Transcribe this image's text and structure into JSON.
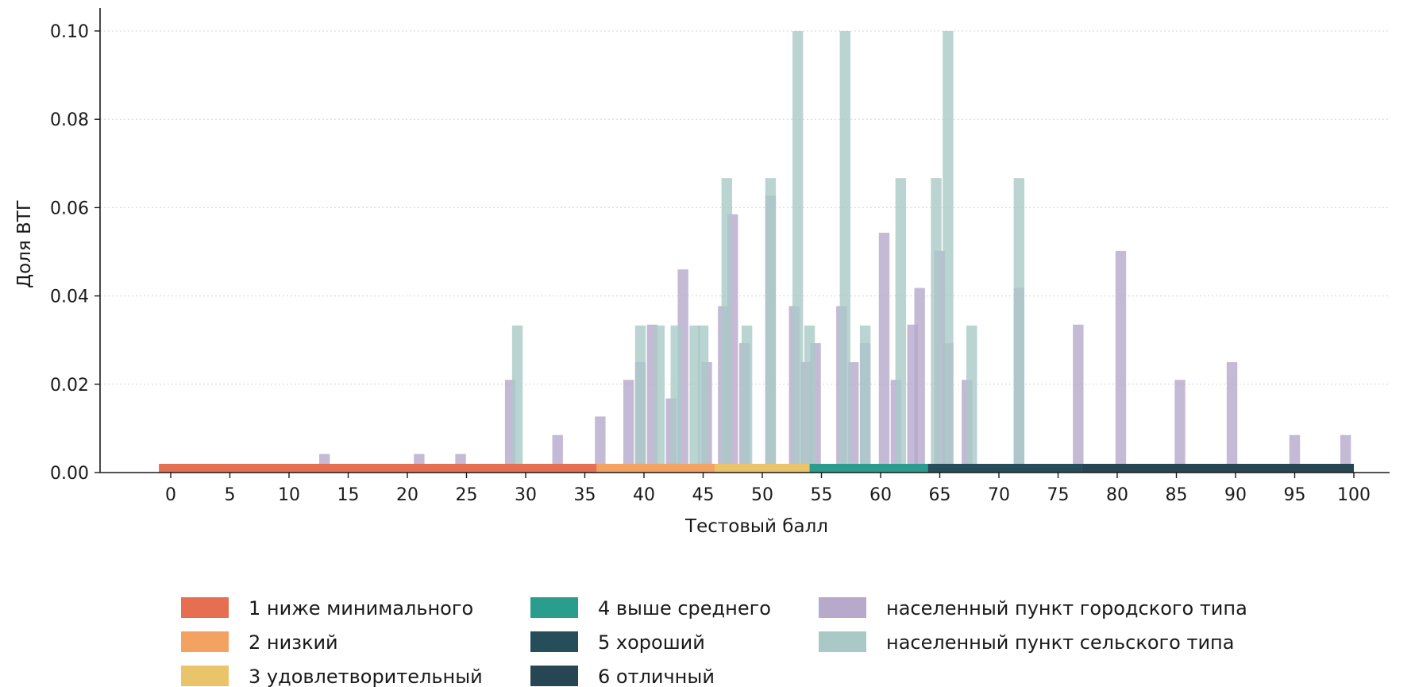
{
  "chart_data": {
    "type": "bar",
    "title": "",
    "xlabel": "Тестовый балл",
    "ylabel": "Доля ВТГ",
    "xlim": [
      -1.5,
      103
    ],
    "ylim": [
      0,
      0.104
    ],
    "xticks": [
      "0",
      "5",
      "10",
      "15",
      "20",
      "25",
      "30",
      "35",
      "40",
      "45",
      "50",
      "55",
      "60",
      "65",
      "70",
      "75",
      "80",
      "85",
      "90",
      "95",
      "100"
    ],
    "yticks": [
      "0.00",
      "0.02",
      "0.04",
      "0.06",
      "0.08",
      "0.10"
    ],
    "grid": "horizontal dotted",
    "legend_position": "bottom",
    "score_bands": [
      {
        "name": "1 ниже минимального",
        "start": -1,
        "end": 36,
        "color": "#e76f51"
      },
      {
        "name": "2 низкий",
        "start": 36,
        "end": 46,
        "color": "#f4a261"
      },
      {
        "name": "3 удовлетворительный",
        "start": 46,
        "end": 54,
        "color": "#e9c46a"
      },
      {
        "name": "4 выше среднего",
        "start": 54,
        "end": 64,
        "color": "#2a9d8f"
      },
      {
        "name": "5 хороший",
        "start": 64,
        "end": 77,
        "color": "#264d5a"
      },
      {
        "name": "6 отличный",
        "start": 77,
        "end": 100,
        "color": "#264653"
      }
    ],
    "series": [
      {
        "name": "населенный пункт городского типа",
        "color": "#b7a9cc",
        "x": [
          13,
          21,
          24.5,
          28.7,
          32.7,
          36.3,
          38.7,
          39.7,
          40.7,
          42.3,
          43.3,
          45.3,
          46.7,
          47.5,
          48.5,
          50.7,
          52.7,
          53.7,
          54.5,
          56.7,
          57.7,
          58.7,
          60.3,
          61.3,
          62.7,
          63.3,
          65,
          65.7,
          67.3,
          71.7,
          76.7,
          80.3,
          85.3,
          89.7,
          95,
          99.3
        ],
        "values": [
          0.0042,
          0.0042,
          0.0042,
          0.021,
          0.0085,
          0.0127,
          0.021,
          0.025,
          0.0335,
          0.0168,
          0.046,
          0.025,
          0.0377,
          0.0585,
          0.0293,
          0.0627,
          0.0377,
          0.025,
          0.0293,
          0.0377,
          0.025,
          0.0293,
          0.0543,
          0.021,
          0.0335,
          0.0418,
          0.0502,
          0.0293,
          0.021,
          0.0418,
          0.0335,
          0.0502,
          0.021,
          0.025,
          0.0085,
          0.0085
        ]
      },
      {
        "name": "населенный пункт сельского типа",
        "color": "#a9c9c7",
        "x": [
          29.3,
          39.7,
          41.3,
          42.7,
          44.3,
          45,
          47,
          48.7,
          50.7,
          53,
          54,
          57,
          58.7,
          61.7,
          64.7,
          65.7,
          67.7,
          71.7
        ],
        "values": [
          0.0333,
          0.0333,
          0.0333,
          0.0333,
          0.0333,
          0.0333,
          0.0667,
          0.0333,
          0.0667,
          0.1,
          0.0333,
          0.1,
          0.0333,
          0.0667,
          0.0667,
          0.1,
          0.0333,
          0.0667
        ]
      }
    ]
  }
}
